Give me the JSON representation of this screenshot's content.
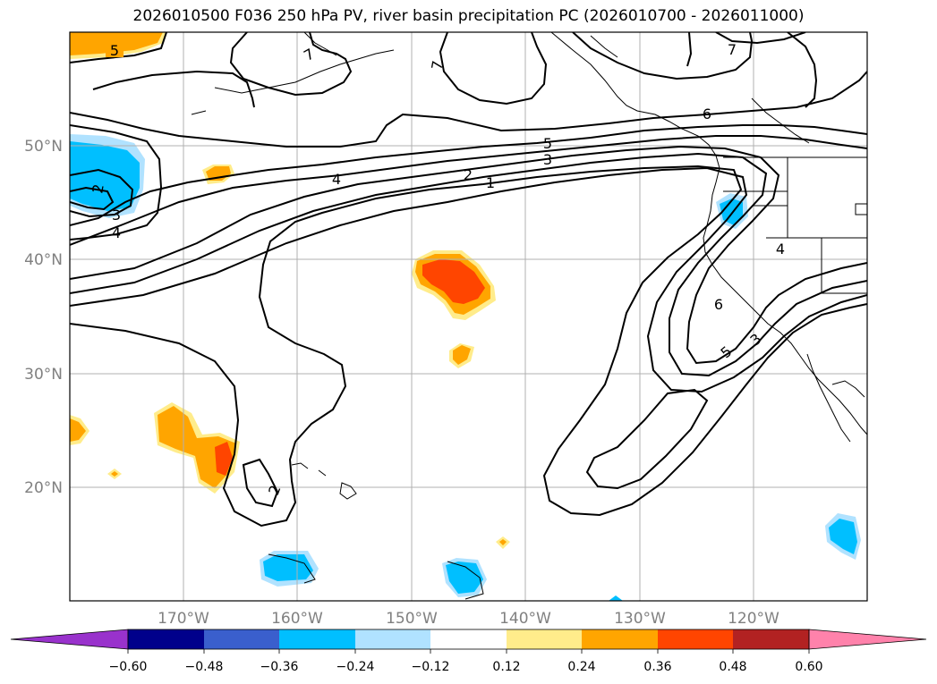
{
  "title": "2026010500 F036 250 hPa PV, river basin precipitation PC (2026010700 - 2026011000)",
  "axes": {
    "x_ticks": [
      "170°W",
      "160°W",
      "150°W",
      "140°W",
      "130°W",
      "120°W"
    ],
    "y_ticks": [
      "50°N",
      "40°N",
      "30°N",
      "20°N"
    ],
    "lon_range": [
      -180,
      -110
    ],
    "lat_range": [
      10,
      60
    ]
  },
  "colorbar": {
    "ticks": [
      "−0.60",
      "−0.48",
      "−0.36",
      "−0.24",
      "−0.12",
      "0.12",
      "0.24",
      "0.36",
      "0.48",
      "0.60"
    ],
    "colors": [
      "#9932cc",
      "#00008b",
      "#3a5fcd",
      "#00bfff",
      "#b0e2ff",
      "#ffffff",
      "#ffec8b",
      "#ffa500",
      "#ff4500",
      "#b22222",
      "#ff82ab"
    ]
  },
  "contour_labels": [
    "5",
    "7",
    "7",
    "7",
    "6",
    "5",
    "3",
    "2",
    "1",
    "4",
    "2",
    "3",
    "4",
    "4",
    "6",
    "5",
    "3",
    "2"
  ],
  "chart_data": {
    "type": "map",
    "title": "2026010500 F036 250 hPa PV, river basin precipitation PC (2026010700 - 2026011000)",
    "fields": [
      "250 hPa PV (contours, PVU)",
      "river basin precipitation PC (shaded)"
    ],
    "pv_contour_levels": [
      1,
      2,
      3,
      4,
      5,
      6,
      7
    ],
    "shading_levels": [
      -0.6,
      -0.48,
      -0.36,
      -0.24,
      -0.12,
      0.12,
      0.24,
      0.36,
      0.48,
      0.6
    ]
  }
}
